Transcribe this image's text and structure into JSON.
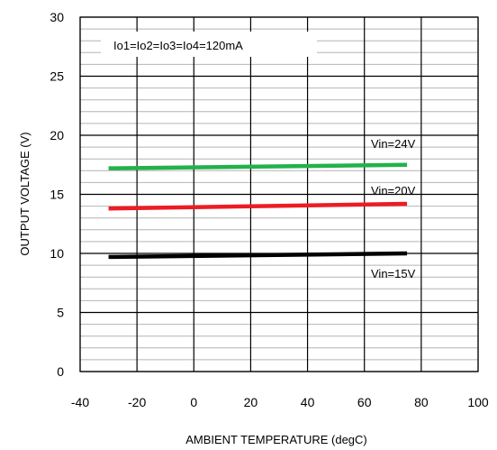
{
  "chart_data": {
    "type": "line",
    "xlabel": "AMBIENT TEMPERATURE   (degC)",
    "ylabel": "OUTPUT VOLTAGE  (V)",
    "xlim": [
      -40,
      100
    ],
    "ylim": [
      0,
      30
    ],
    "xticks": [
      "-40",
      "-20",
      "0",
      "20",
      "40",
      "60",
      "80",
      "100"
    ],
    "yticks": [
      "0",
      "5",
      "10",
      "15",
      "20",
      "25",
      "30"
    ],
    "major_grid": true,
    "minor_y_step": 1,
    "condition_label": "Io1=Io2=Io3=Io4=120mA",
    "series": [
      {
        "name": "Vin=24V",
        "color": "#22b14c",
        "x": [
          -30,
          75
        ],
        "y": [
          17.2,
          17.5
        ]
      },
      {
        "name": "Vin=20V",
        "color": "#ed1c24",
        "x": [
          -30,
          75
        ],
        "y": [
          13.8,
          14.2
        ]
      },
      {
        "name": "Vin=15V",
        "color": "#000000",
        "x": [
          -30,
          75
        ],
        "y": [
          9.7,
          10.0
        ]
      }
    ]
  }
}
